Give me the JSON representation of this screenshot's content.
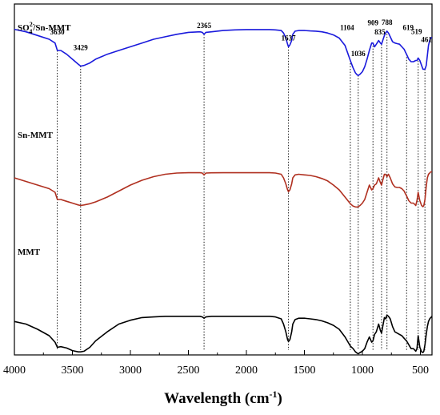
{
  "chart_data": {
    "type": "line",
    "xlabel": "Wavelength (cm",
    "xlabel_superscript": "-1",
    "xlabel_close": ")",
    "xlim": [
      4000,
      400
    ],
    "x_ticks": [
      4000,
      3500,
      3000,
      2500,
      2000,
      1500,
      1000,
      500
    ],
    "y_axis_shown": false,
    "grid": false,
    "legend": "labels placed above each curve on the left",
    "peak_lines": [
      {
        "x": 3630,
        "label": "3630"
      },
      {
        "x": 3429,
        "label": "3429"
      },
      {
        "x": 2365,
        "label": "2365"
      },
      {
        "x": 1637,
        "label": "1637"
      },
      {
        "x": 1104,
        "label": "1104"
      },
      {
        "x": 1036,
        "label": "1036"
      },
      {
        "x": 909,
        "label": "909"
      },
      {
        "x": 835,
        "label": "835"
      },
      {
        "x": 788,
        "label": "788"
      },
      {
        "x": 619,
        "label": "619"
      },
      {
        "x": 519,
        "label": "519"
      },
      {
        "x": 461,
        "label": "461"
      }
    ],
    "series": [
      {
        "name": "SO4 2-/Sn-MMT",
        "label_main": "SO",
        "label_sub": "4",
        "label_sup": "2-",
        "label_tail": "/Sn-MMT",
        "color": "#1a1adc",
        "x": [
          4000,
          3900,
          3800,
          3700,
          3650,
          3630,
          3600,
          3550,
          3500,
          3450,
          3429,
          3400,
          3350,
          3300,
          3200,
          3100,
          3000,
          2900,
          2800,
          2700,
          2600,
          2500,
          2400,
          2380,
          2365,
          2350,
          2300,
          2200,
          2100,
          2000,
          1900,
          1800,
          1750,
          1700,
          1680,
          1660,
          1645,
          1637,
          1625,
          1610,
          1600,
          1580,
          1550,
          1500,
          1450,
          1400,
          1350,
          1300,
          1250,
          1200,
          1150,
          1104,
          1080,
          1060,
          1045,
          1036,
          1020,
          1000,
          980,
          960,
          940,
          920,
          909,
          895,
          880,
          860,
          845,
          835,
          825,
          810,
          800,
          788,
          775,
          760,
          740,
          720,
          700,
          680,
          660,
          640,
          630,
          619,
          600,
          580,
          560,
          540,
          530,
          519,
          505,
          490,
          478,
          470,
          461,
          450,
          440,
          430,
          420,
          410,
          400
        ],
        "y": [
          87,
          85,
          82,
          79,
          76,
          70,
          70,
          67,
          63,
          59,
          57.5,
          58,
          60,
          63,
          67,
          70,
          73,
          76,
          79,
          81,
          83,
          84.5,
          85,
          84.5,
          83,
          84.5,
          85,
          86,
          86.5,
          86.8,
          86.8,
          86.8,
          86.5,
          86,
          84,
          80,
          75,
          73,
          74.5,
          78,
          83,
          85.5,
          86,
          86,
          85.7,
          85.5,
          85,
          84,
          82.5,
          80,
          74,
          62,
          56,
          52,
          50.5,
          50,
          51,
          53,
          57,
          63,
          70,
          76,
          76,
          73,
          75,
          78,
          76,
          75,
          78,
          82,
          84,
          85.5,
          84,
          81,
          77,
          76,
          75.5,
          75,
          73,
          71,
          69,
          67,
          63,
          61,
          61,
          62,
          62,
          64,
          62,
          58,
          55,
          55,
          55,
          58,
          66,
          74,
          78,
          80,
          80.5
        ]
      },
      {
        "name": "Sn-MMT",
        "label_main": "Sn-MMT",
        "label_sub": "",
        "label_sup": "",
        "label_tail": "",
        "color": "#b03020",
        "x": [
          4000,
          3900,
          3800,
          3700,
          3650,
          3630,
          3600,
          3550,
          3500,
          3450,
          3429,
          3400,
          3350,
          3300,
          3200,
          3100,
          3000,
          2900,
          2800,
          2700,
          2600,
          2500,
          2400,
          2380,
          2365,
          2350,
          2300,
          2200,
          2100,
          2000,
          1900,
          1800,
          1750,
          1700,
          1680,
          1660,
          1645,
          1637,
          1625,
          1610,
          1600,
          1580,
          1550,
          1500,
          1450,
          1400,
          1350,
          1300,
          1250,
          1200,
          1150,
          1104,
          1080,
          1060,
          1045,
          1036,
          1020,
          1000,
          980,
          960,
          940,
          920,
          909,
          895,
          880,
          860,
          845,
          835,
          825,
          810,
          800,
          788,
          775,
          760,
          740,
          720,
          700,
          680,
          660,
          640,
          630,
          619,
          600,
          580,
          560,
          540,
          530,
          519,
          505,
          490,
          478,
          470,
          461,
          450,
          440,
          430,
          420,
          410,
          400
        ],
        "y": [
          52,
          49,
          46,
          43,
          40,
          34,
          34,
          32.5,
          31,
          29.5,
          29,
          29.5,
          30.5,
          32,
          36,
          41,
          46,
          50,
          53,
          55,
          56,
          56.3,
          56.3,
          56,
          54.5,
          56,
          56.2,
          56.3,
          56.3,
          56.3,
          56.3,
          56.3,
          56,
          55,
          52,
          47,
          42,
          40.5,
          42,
          47,
          52,
          54.5,
          55,
          54.5,
          54,
          53,
          51.5,
          49.5,
          46,
          42,
          36,
          30.5,
          28.5,
          27.8,
          27.7,
          28,
          29,
          31,
          34,
          40,
          46,
          42,
          43,
          46,
          47,
          52,
          48,
          46,
          50,
          55,
          55,
          53,
          55,
          52,
          47,
          44.5,
          44,
          44,
          43,
          41,
          39,
          37,
          33,
          31,
          31,
          29,
          33,
          40,
          33,
          29,
          28,
          29,
          34,
          45,
          52,
          55,
          56,
          57,
          57
        ]
      },
      {
        "name": "MMT",
        "label_main": "MMT",
        "label_sub": "",
        "label_sup": "",
        "label_tail": "",
        "color": "#000000",
        "x": [
          4000,
          3900,
          3800,
          3700,
          3650,
          3630,
          3600,
          3550,
          3500,
          3450,
          3429,
          3400,
          3350,
          3300,
          3200,
          3100,
          3000,
          2900,
          2800,
          2700,
          2600,
          2500,
          2400,
          2380,
          2365,
          2350,
          2300,
          2200,
          2100,
          2000,
          1900,
          1800,
          1750,
          1700,
          1680,
          1660,
          1645,
          1637,
          1625,
          1610,
          1600,
          1580,
          1550,
          1500,
          1450,
          1400,
          1350,
          1300,
          1250,
          1200,
          1150,
          1104,
          1080,
          1060,
          1045,
          1036,
          1020,
          1000,
          980,
          960,
          940,
          920,
          909,
          895,
          880,
          860,
          845,
          835,
          825,
          810,
          800,
          788,
          775,
          760,
          740,
          720,
          700,
          680,
          660,
          640,
          630,
          619,
          600,
          580,
          560,
          540,
          530,
          519,
          505,
          490,
          478,
          470,
          461,
          450,
          440,
          430,
          420,
          410,
          400
        ],
        "y": [
          24,
          22,
          18,
          13,
          8,
          4,
          4.5,
          3.5,
          1.5,
          0.5,
          0.5,
          1,
          4,
          9,
          16,
          22,
          25,
          27,
          27.5,
          28,
          28,
          28,
          28,
          27.5,
          26.5,
          27.5,
          28,
          28,
          28,
          28,
          28,
          28,
          27.5,
          26,
          22,
          16,
          10,
          8.5,
          10,
          16,
          22,
          25.5,
          26.5,
          26.5,
          26,
          25.5,
          24.5,
          23,
          21,
          18,
          12,
          5,
          3,
          0.5,
          -0.5,
          -1,
          0,
          1,
          3,
          8,
          12,
          8,
          9,
          14,
          16,
          22,
          17,
          15,
          20,
          27,
          26,
          29,
          28,
          26,
          20,
          16,
          15,
          14,
          13,
          11,
          10,
          9,
          6,
          3,
          3,
          1,
          3,
          13,
          4,
          0.5,
          0,
          1,
          6,
          14,
          20,
          24,
          26,
          27,
          28
        ]
      }
    ]
  }
}
